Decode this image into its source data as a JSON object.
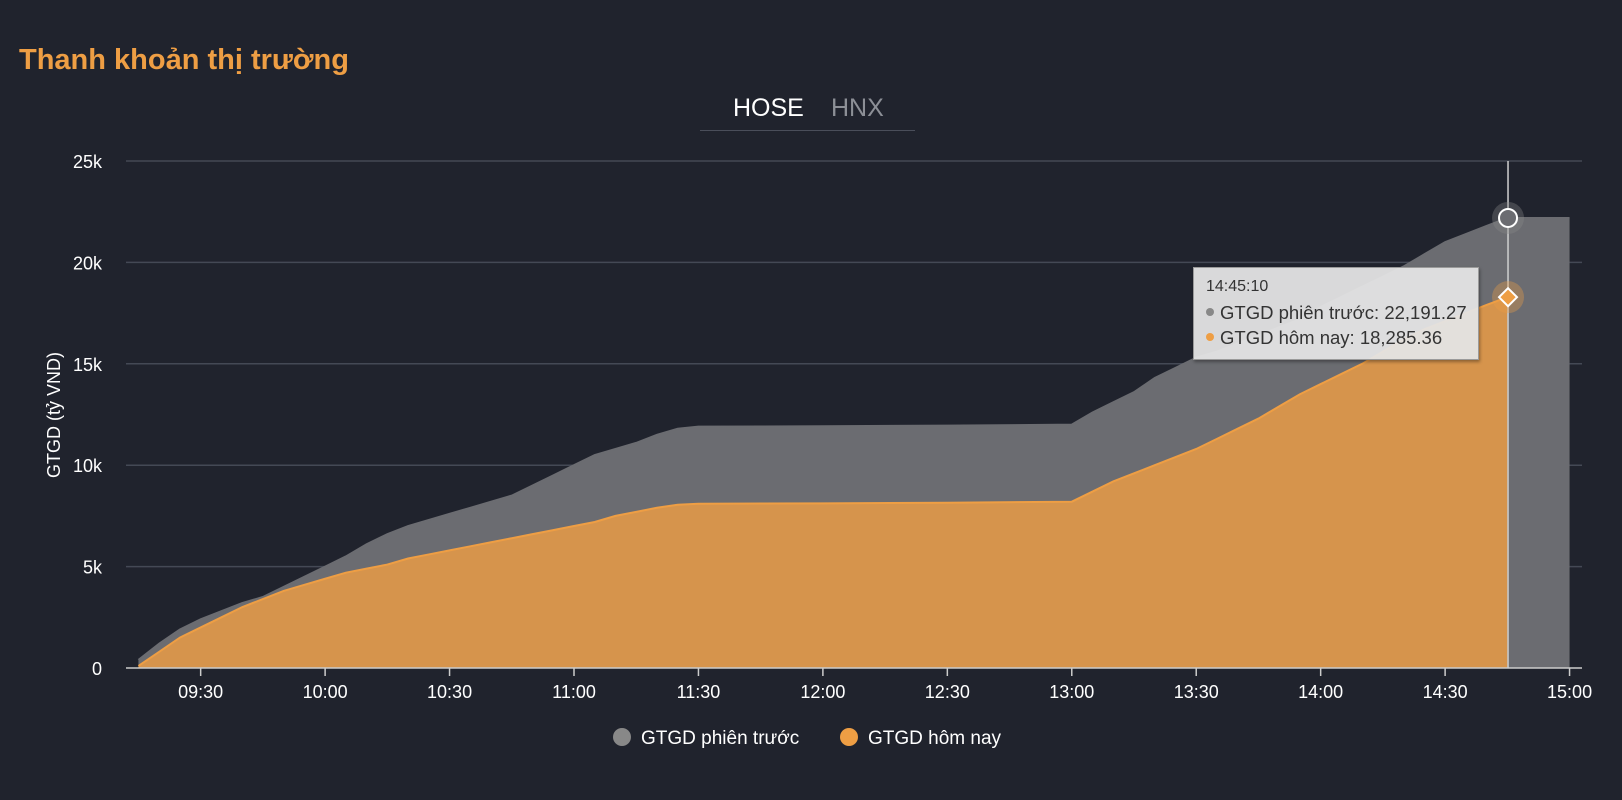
{
  "page": {
    "title": "Thanh khoản thị trường",
    "tabs": [
      {
        "label": "HOSE",
        "active": true
      },
      {
        "label": "HNX",
        "active": false
      }
    ]
  },
  "tooltip": {
    "time": "14:45:10",
    "rows": [
      {
        "label": "GTGD phiên trước: 22,191.27",
        "color": "#888888"
      },
      {
        "label": "GTGD hôm nay: 18,285.36",
        "color": "#ee9e44"
      }
    ]
  },
  "chart_data": {
    "type": "area",
    "title": "",
    "xlabel": "",
    "ylabel": "GTGD (tỷ VND)",
    "ylim": [
      0,
      25000
    ],
    "y_ticks": [
      0,
      5000,
      10000,
      15000,
      20000,
      25000
    ],
    "y_tick_labels": [
      "0",
      "5k",
      "10k",
      "15k",
      "20k",
      "25k"
    ],
    "x_ticks": [
      "09:30",
      "10:00",
      "10:30",
      "11:00",
      "11:30",
      "12:00",
      "12:30",
      "13:00",
      "13:30",
      "14:00",
      "14:30",
      "15:00"
    ],
    "xlim": [
      "09:12",
      "15:03"
    ],
    "grid": true,
    "legend_position": "bottom-center",
    "series": [
      {
        "name": "GTGD phiên trước",
        "color": "#6b6c71",
        "legend_color": "#888888",
        "x": [
          "09:15",
          "09:20",
          "09:25",
          "09:30",
          "09:35",
          "09:40",
          "09:45",
          "09:50",
          "09:55",
          "10:00",
          "10:05",
          "10:10",
          "10:15",
          "10:20",
          "10:25",
          "10:30",
          "10:35",
          "10:40",
          "10:45",
          "10:50",
          "10:55",
          "11:00",
          "11:05",
          "11:10",
          "11:15",
          "11:20",
          "11:25",
          "11:30",
          "12:00",
          "12:30",
          "13:00",
          "13:05",
          "13:10",
          "13:15",
          "13:20",
          "13:25",
          "13:30",
          "13:35",
          "13:40",
          "13:45",
          "13:50",
          "13:55",
          "14:00",
          "14:05",
          "14:10",
          "14:15",
          "14:20",
          "14:25",
          "14:30",
          "14:35",
          "14:40",
          "14:45",
          "15:00"
        ],
        "values": [
          400,
          1200,
          1900,
          2400,
          2800,
          3200,
          3500,
          4000,
          4500,
          5000,
          5500,
          6100,
          6600,
          7000,
          7300,
          7600,
          7900,
          8200,
          8500,
          9000,
          9500,
          10000,
          10500,
          10800,
          11100,
          11500,
          11800,
          11900,
          11920,
          11950,
          12000,
          12600,
          13100,
          13600,
          14300,
          14800,
          15300,
          15600,
          16000,
          16400,
          16800,
          17200,
          17800,
          18300,
          18800,
          19300,
          19800,
          20400,
          21000,
          21400,
          21800,
          22191.27,
          22191.27
        ]
      },
      {
        "name": "GTGD hôm nay",
        "color": "#ee9e44",
        "legend_color": "#ee9e44",
        "x": [
          "09:15",
          "09:20",
          "09:25",
          "09:30",
          "09:35",
          "09:40",
          "09:45",
          "09:50",
          "09:55",
          "10:00",
          "10:05",
          "10:10",
          "10:15",
          "10:20",
          "10:25",
          "10:30",
          "10:35",
          "10:40",
          "10:45",
          "10:50",
          "10:55",
          "11:00",
          "11:05",
          "11:10",
          "11:15",
          "11:20",
          "11:25",
          "11:30",
          "12:00",
          "12:30",
          "13:00",
          "13:05",
          "13:10",
          "13:15",
          "13:20",
          "13:25",
          "13:30",
          "13:35",
          "13:40",
          "13:45",
          "13:50",
          "13:55",
          "14:00",
          "14:05",
          "14:10",
          "14:15",
          "14:20",
          "14:25",
          "14:30",
          "14:35",
          "14:40",
          "14:45"
        ],
        "values": [
          100,
          800,
          1500,
          2000,
          2500,
          3000,
          3400,
          3800,
          4100,
          4400,
          4700,
          4900,
          5100,
          5400,
          5600,
          5800,
          6000,
          6200,
          6400,
          6600,
          6800,
          7000,
          7200,
          7500,
          7700,
          7900,
          8050,
          8100,
          8120,
          8150,
          8200,
          8700,
          9200,
          9600,
          10000,
          10400,
          10800,
          11300,
          11800,
          12300,
          12900,
          13500,
          14000,
          14500,
          15000,
          15600,
          16200,
          16700,
          17100,
          17500,
          17900,
          18285.36
        ]
      }
    ],
    "highlight": {
      "x": "14:45:10",
      "values": [
        22191.27,
        18285.36
      ]
    }
  }
}
